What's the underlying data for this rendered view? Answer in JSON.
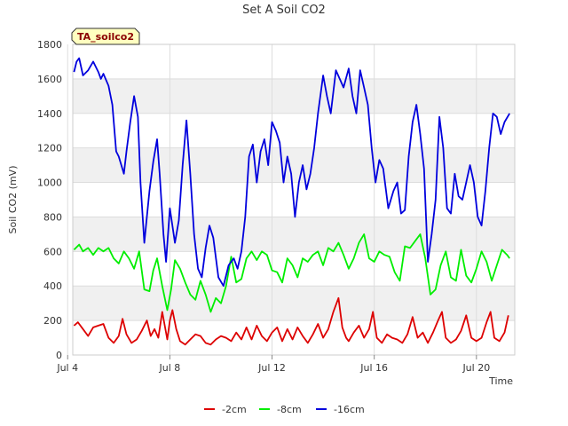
{
  "chart_data": {
    "type": "line",
    "title": "Set A Soil CO2",
    "badge": "TA_soilco2",
    "xlabel": "Time",
    "ylabel": "Soil CO2 (mV)",
    "xlim": [
      4.2,
      21.5
    ],
    "ylim": [
      0,
      1800
    ],
    "y_ticks": [
      0,
      200,
      400,
      600,
      800,
      1000,
      1200,
      1400,
      1600,
      1800
    ],
    "x_ticks": [
      {
        "day": 4,
        "label": "Jul 4"
      },
      {
        "day": 8,
        "label": "Jul 8"
      },
      {
        "day": 12,
        "label": "Jul 12"
      },
      {
        "day": 16,
        "label": "Jul 16"
      },
      {
        "day": 20,
        "label": "Jul 20"
      }
    ],
    "x_unit": "days in July (fractional)",
    "series": [
      {
        "name": "-2cm",
        "color": "#dd0000",
        "x": [
          4.25,
          4.4,
          4.6,
          4.8,
          5.0,
          5.2,
          5.4,
          5.6,
          5.8,
          6.0,
          6.15,
          6.3,
          6.5,
          6.7,
          6.9,
          7.1,
          7.25,
          7.4,
          7.55,
          7.7,
          7.9,
          8.0,
          8.1,
          8.25,
          8.4,
          8.6,
          8.8,
          9.0,
          9.2,
          9.4,
          9.6,
          9.8,
          10.0,
          10.2,
          10.4,
          10.6,
          10.8,
          11.0,
          11.2,
          11.4,
          11.6,
          11.8,
          12.0,
          12.2,
          12.4,
          12.6,
          12.8,
          13.0,
          13.2,
          13.4,
          13.6,
          13.8,
          14.0,
          14.2,
          14.4,
          14.6,
          14.75,
          14.9,
          15.0,
          15.2,
          15.4,
          15.6,
          15.8,
          15.95,
          16.1,
          16.3,
          16.5,
          16.7,
          16.9,
          17.1,
          17.3,
          17.5,
          17.7,
          17.9,
          18.1,
          18.3,
          18.5,
          18.65,
          18.8,
          19.0,
          19.2,
          19.4,
          19.6,
          19.8,
          20.0,
          20.2,
          20.4,
          20.55,
          20.7,
          20.9,
          21.1,
          21.25
        ],
        "y": [
          170,
          190,
          150,
          110,
          160,
          170,
          180,
          100,
          70,
          110,
          210,
          120,
          70,
          90,
          140,
          200,
          110,
          150,
          100,
          250,
          90,
          200,
          260,
          150,
          80,
          60,
          90,
          120,
          110,
          70,
          60,
          90,
          110,
          100,
          80,
          130,
          90,
          160,
          90,
          170,
          110,
          80,
          130,
          160,
          80,
          150,
          90,
          160,
          110,
          70,
          120,
          180,
          100,
          150,
          250,
          330,
          160,
          100,
          80,
          130,
          170,
          100,
          150,
          250,
          100,
          70,
          120,
          100,
          90,
          70,
          120,
          220,
          100,
          130,
          70,
          130,
          200,
          250,
          100,
          70,
          90,
          140,
          230,
          100,
          80,
          100,
          190,
          250,
          100,
          80,
          130,
          230
        ]
      },
      {
        "name": "-8cm",
        "color": "#00ee00",
        "x": [
          4.25,
          4.45,
          4.6,
          4.8,
          5.0,
          5.2,
          5.4,
          5.6,
          5.8,
          6.0,
          6.2,
          6.4,
          6.6,
          6.8,
          7.0,
          7.2,
          7.35,
          7.5,
          7.7,
          7.9,
          8.05,
          8.2,
          8.4,
          8.6,
          8.8,
          9.0,
          9.2,
          9.4,
          9.6,
          9.8,
          10.0,
          10.2,
          10.4,
          10.6,
          10.8,
          11.0,
          11.2,
          11.4,
          11.6,
          11.8,
          12.0,
          12.2,
          12.4,
          12.6,
          12.8,
          13.0,
          13.2,
          13.4,
          13.6,
          13.8,
          14.0,
          14.2,
          14.4,
          14.6,
          14.8,
          15.0,
          15.2,
          15.4,
          15.6,
          15.8,
          16.0,
          16.2,
          16.4,
          16.6,
          16.8,
          17.0,
          17.2,
          17.4,
          17.6,
          17.8,
          18.0,
          18.2,
          18.4,
          18.6,
          18.8,
          19.0,
          19.2,
          19.4,
          19.6,
          19.8,
          20.0,
          20.2,
          20.4,
          20.6,
          20.8,
          21.0,
          21.2,
          21.3
        ],
        "y": [
          610,
          640,
          600,
          620,
          580,
          620,
          600,
          620,
          560,
          530,
          600,
          560,
          500,
          600,
          380,
          370,
          490,
          560,
          400,
          260,
          380,
          550,
          500,
          420,
          350,
          320,
          430,
          350,
          250,
          330,
          300,
          400,
          570,
          420,
          440,
          560,
          600,
          550,
          600,
          580,
          490,
          480,
          420,
          560,
          520,
          450,
          560,
          540,
          580,
          600,
          520,
          620,
          600,
          650,
          580,
          500,
          560,
          650,
          700,
          560,
          540,
          600,
          580,
          570,
          480,
          430,
          630,
          620,
          660,
          700,
          560,
          350,
          380,
          520,
          600,
          450,
          430,
          610,
          460,
          420,
          500,
          600,
          540,
          430,
          520,
          610,
          580,
          560
        ]
      },
      {
        "name": "-16cm",
        "color": "#0000dd",
        "x": [
          4.25,
          4.35,
          4.45,
          4.6,
          4.8,
          5.0,
          5.2,
          5.3,
          5.4,
          5.6,
          5.75,
          5.9,
          6.0,
          6.2,
          6.3,
          6.45,
          6.6,
          6.75,
          6.85,
          7.0,
          7.1,
          7.2,
          7.35,
          7.5,
          7.6,
          7.75,
          7.85,
          8.0,
          8.2,
          8.35,
          8.5,
          8.65,
          8.8,
          8.95,
          9.1,
          9.25,
          9.4,
          9.55,
          9.7,
          9.9,
          10.1,
          10.3,
          10.5,
          10.65,
          10.8,
          10.95,
          11.1,
          11.25,
          11.4,
          11.55,
          11.7,
          11.85,
          12.0,
          12.15,
          12.3,
          12.45,
          12.6,
          12.75,
          12.9,
          13.05,
          13.2,
          13.35,
          13.5,
          13.65,
          13.8,
          14.0,
          14.15,
          14.3,
          14.5,
          14.65,
          14.8,
          15.0,
          15.15,
          15.3,
          15.45,
          15.6,
          15.75,
          15.9,
          16.05,
          16.2,
          16.35,
          16.55,
          16.75,
          16.9,
          17.05,
          17.2,
          17.35,
          17.5,
          17.65,
          17.8,
          17.95,
          18.1,
          18.25,
          18.4,
          18.55,
          18.7,
          18.85,
          19.0,
          19.15,
          19.3,
          19.45,
          19.6,
          19.75,
          19.9,
          20.05,
          20.2,
          20.35,
          20.5,
          20.65,
          20.8,
          20.95,
          21.1,
          21.3
        ],
        "y": [
          1640,
          1700,
          1720,
          1620,
          1650,
          1700,
          1640,
          1600,
          1630,
          1560,
          1450,
          1180,
          1150,
          1050,
          1180,
          1350,
          1500,
          1380,
          1000,
          650,
          800,
          950,
          1120,
          1250,
          1050,
          700,
          540,
          850,
          650,
          780,
          1100,
          1360,
          1050,
          700,
          500,
          450,
          620,
          750,
          680,
          450,
          400,
          520,
          560,
          500,
          600,
          800,
          1150,
          1220,
          1000,
          1180,
          1250,
          1100,
          1350,
          1300,
          1230,
          1000,
          1150,
          1050,
          800,
          1000,
          1100,
          960,
          1050,
          1200,
          1400,
          1620,
          1500,
          1400,
          1650,
          1600,
          1550,
          1660,
          1500,
          1400,
          1650,
          1550,
          1450,
          1200,
          1000,
          1130,
          1080,
          850,
          950,
          1000,
          820,
          840,
          1150,
          1350,
          1450,
          1280,
          1080,
          540,
          700,
          900,
          1380,
          1200,
          850,
          820,
          1050,
          920,
          900,
          1000,
          1100,
          1000,
          800,
          750,
          950,
          1200,
          1400,
          1380,
          1280,
          1350,
          1400
        ]
      }
    ]
  }
}
